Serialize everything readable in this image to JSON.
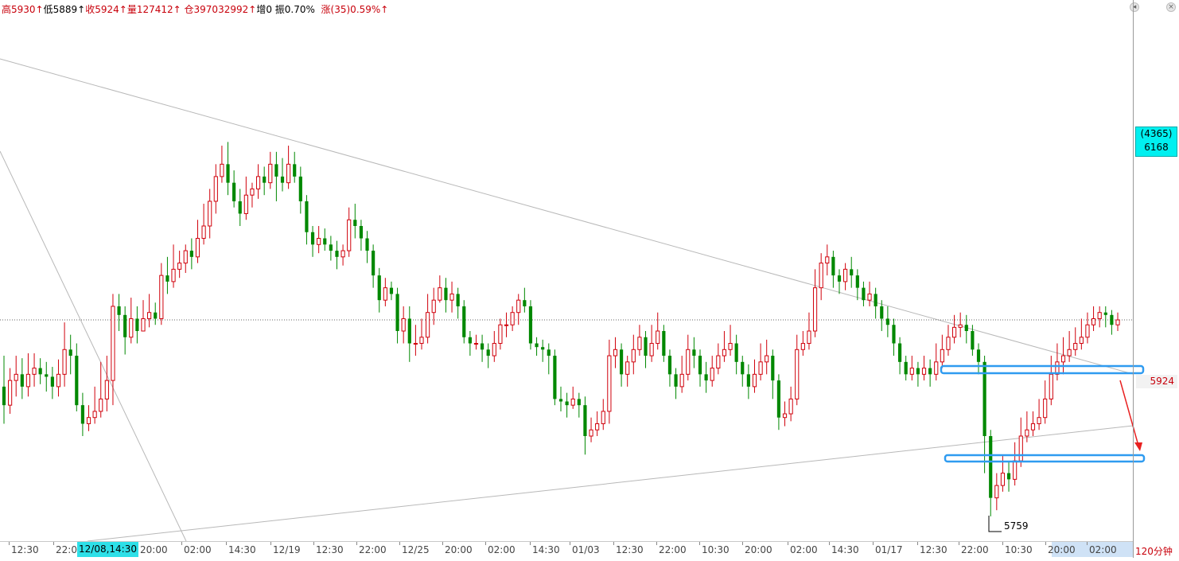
{
  "info_bar": {
    "high": "高5930↑",
    "low": "低5889↑",
    "close": "收5924↑",
    "volume": "量127412↑",
    "open_interest": "仓397032992↑",
    "increase": "增0",
    "amplitude": "振0.70%",
    "change": "涨(35)0.59%↑"
  },
  "right_panel": {
    "tag_line1": "(4365)",
    "tag_line2": "6168",
    "last_price": "5924",
    "period": "120分钟"
  },
  "low_annotation": "5759",
  "x_ticks": [
    "12:30",
    "22:0",
    "20:00",
    "02:00",
    "14:30",
    "12/19",
    "12:30",
    "22:00",
    "12/25",
    "20:00",
    "02:00",
    "14:30",
    "01/03",
    "12:30",
    "22:00",
    "10:30",
    "20:00",
    "02:00",
    "14:30",
    "01/17",
    "12:30",
    "22:00",
    "10:30",
    "20:00",
    "02:00"
  ],
  "x_highlight": "12/08,14:30",
  "colors": {
    "up": "#d0000b",
    "down": "#008800",
    "highlight_box": "#2f9bf0",
    "trendline": "#b8b8b8",
    "arrow": "#e82020"
  },
  "chart_data": {
    "type": "candlestick",
    "period": "120分钟",
    "last_close": 5924,
    "marked_low": 5759,
    "ylim": [
      5745,
      6170
    ],
    "levels": [
      5924
    ],
    "candles_approx": [
      [
        5870,
        5855,
        5895,
        5840
      ],
      [
        5855,
        5875,
        5885,
        5848
      ],
      [
        5875,
        5880,
        5895,
        5862
      ],
      [
        5880,
        5870,
        5893,
        5860
      ],
      [
        5870,
        5880,
        5897,
        5862
      ],
      [
        5880,
        5885,
        5897,
        5870
      ],
      [
        5885,
        5880,
        5893,
        5872
      ],
      [
        5880,
        5878,
        5890,
        5866
      ],
      [
        5878,
        5870,
        5886,
        5860
      ],
      [
        5870,
        5880,
        5892,
        5862
      ],
      [
        5880,
        5900,
        5922,
        5870
      ],
      [
        5900,
        5895,
        5912,
        5880
      ],
      [
        5895,
        5855,
        5905,
        5850
      ],
      [
        5855,
        5840,
        5865,
        5830
      ],
      [
        5840,
        5845,
        5855,
        5834
      ],
      [
        5845,
        5850,
        5870,
        5840
      ],
      [
        5850,
        5860,
        5890,
        5845
      ],
      [
        5860,
        5875,
        5895,
        5850
      ],
      [
        5875,
        5935,
        5945,
        5855
      ],
      [
        5935,
        5928,
        5945,
        5915
      ],
      [
        5928,
        5910,
        5935,
        5896
      ],
      [
        5910,
        5925,
        5942,
        5905
      ],
      [
        5925,
        5915,
        5935,
        5905
      ],
      [
        5915,
        5925,
        5940,
        5915
      ],
      [
        5925,
        5930,
        5945,
        5918
      ],
      [
        5930,
        5925,
        5938,
        5920
      ],
      [
        5925,
        5960,
        5970,
        5920
      ],
      [
        5960,
        5955,
        5975,
        5945
      ],
      [
        5955,
        5965,
        5985,
        5950
      ],
      [
        5965,
        5970,
        5980,
        5958
      ],
      [
        5970,
        5980,
        5985,
        5962
      ],
      [
        5980,
        5975,
        5990,
        5965
      ],
      [
        5975,
        5990,
        6005,
        5970
      ],
      [
        5990,
        6000,
        6018,
        5985
      ],
      [
        6000,
        6020,
        6030,
        5990
      ],
      [
        6020,
        6040,
        6050,
        6010
      ],
      [
        6040,
        6050,
        6065,
        6035
      ],
      [
        6050,
        6035,
        6068,
        6025
      ],
      [
        6035,
        6020,
        6045,
        6015
      ],
      [
        6020,
        6010,
        6030,
        6000
      ],
      [
        6010,
        6025,
        6040,
        6005
      ],
      [
        6025,
        6030,
        6035,
        6015
      ],
      [
        6030,
        6040,
        6050,
        6022
      ],
      [
        6040,
        6035,
        6048,
        6025
      ],
      [
        6035,
        6050,
        6060,
        6030
      ],
      [
        6050,
        6040,
        6060,
        6020
      ],
      [
        6040,
        6035,
        6055,
        6028
      ],
      [
        6035,
        6050,
        6065,
        6030
      ],
      [
        6050,
        6040,
        6060,
        6035
      ],
      [
        6040,
        6020,
        6048,
        6010
      ],
      [
        6020,
        5995,
        6025,
        5985
      ],
      [
        5995,
        5985,
        6000,
        5975
      ],
      [
        5985,
        5990,
        6000,
        5978
      ],
      [
        5990,
        5985,
        5998,
        5980
      ],
      [
        5985,
        5980,
        5992,
        5972
      ],
      [
        5980,
        5975,
        5988,
        5965
      ],
      [
        5975,
        5980,
        5985,
        5968
      ],
      [
        5980,
        6005,
        6015,
        5975
      ],
      [
        6005,
        6000,
        6018,
        5990
      ],
      [
        6000,
        5990,
        6005,
        5980
      ],
      [
        5990,
        5980,
        5996,
        5970
      ],
      [
        5980,
        5960,
        5985,
        5950
      ],
      [
        5960,
        5940,
        5966,
        5930
      ],
      [
        5940,
        5950,
        5958,
        5935
      ],
      [
        5950,
        5945,
        5955,
        5940
      ],
      [
        5945,
        5915,
        5950,
        5905
      ],
      [
        5915,
        5925,
        5935,
        5905
      ],
      [
        5925,
        5905,
        5935,
        5890
      ],
      [
        5905,
        5905,
        5920,
        5895
      ],
      [
        5905,
        5910,
        5925,
        5900
      ],
      [
        5910,
        5930,
        5945,
        5905
      ],
      [
        5930,
        5940,
        5950,
        5920
      ],
      [
        5940,
        5950,
        5960,
        5938
      ],
      [
        5950,
        5940,
        5958,
        5930
      ],
      [
        5940,
        5945,
        5955,
        5930
      ],
      [
        5945,
        5935,
        5950,
        5925
      ],
      [
        5935,
        5910,
        5940,
        5905
      ],
      [
        5910,
        5905,
        5915,
        5895
      ],
      [
        5905,
        5905,
        5912,
        5900
      ],
      [
        5905,
        5900,
        5912,
        5890
      ],
      [
        5900,
        5895,
        5905,
        5885
      ],
      [
        5895,
        5905,
        5915,
        5890
      ],
      [
        5905,
        5920,
        5925,
        5900
      ],
      [
        5920,
        5920,
        5930,
        5910
      ],
      [
        5920,
        5930,
        5935,
        5915
      ],
      [
        5930,
        5940,
        5945,
        5920
      ],
      [
        5940,
        5935,
        5950,
        5930
      ],
      [
        5935,
        5905,
        5940,
        5900
      ],
      [
        5905,
        5902,
        5910,
        5895
      ],
      [
        5902,
        5900,
        5908,
        5890
      ],
      [
        5900,
        5895,
        5905,
        5880
      ],
      [
        5895,
        5860,
        5900,
        5855
      ],
      [
        5860,
        5858,
        5870,
        5850
      ],
      [
        5858,
        5855,
        5865,
        5845
      ],
      [
        5855,
        5860,
        5870,
        5852
      ],
      [
        5860,
        5855,
        5865,
        5845
      ],
      [
        5855,
        5830,
        5862,
        5815
      ],
      [
        5830,
        5835,
        5845,
        5825
      ],
      [
        5835,
        5840,
        5850,
        5830
      ],
      [
        5840,
        5850,
        5860,
        5835
      ],
      [
        5850,
        5895,
        5908,
        5840
      ],
      [
        5895,
        5900,
        5910,
        5885
      ],
      [
        5900,
        5880,
        5905,
        5870
      ],
      [
        5880,
        5890,
        5895,
        5870
      ],
      [
        5890,
        5900,
        5912,
        5880
      ],
      [
        5900,
        5910,
        5920,
        5895
      ],
      [
        5910,
        5895,
        5915,
        5885
      ],
      [
        5895,
        5905,
        5920,
        5890
      ],
      [
        5905,
        5915,
        5930,
        5900
      ],
      [
        5915,
        5895,
        5920,
        5890
      ],
      [
        5895,
        5880,
        5900,
        5870
      ],
      [
        5880,
        5870,
        5885,
        5860
      ],
      [
        5870,
        5880,
        5895,
        5865
      ],
      [
        5880,
        5900,
        5912,
        5875
      ],
      [
        5900,
        5895,
        5910,
        5885
      ],
      [
        5895,
        5880,
        5900,
        5870
      ],
      [
        5880,
        5875,
        5890,
        5865
      ],
      [
        5875,
        5885,
        5895,
        5870
      ],
      [
        5885,
        5895,
        5905,
        5880
      ],
      [
        5895,
        5900,
        5915,
        5890
      ],
      [
        5900,
        5905,
        5920,
        5895
      ],
      [
        5905,
        5890,
        5912,
        5880
      ],
      [
        5890,
        5880,
        5895,
        5870
      ],
      [
        5880,
        5870,
        5888,
        5860
      ],
      [
        5870,
        5880,
        5892,
        5865
      ],
      [
        5880,
        5890,
        5905,
        5875
      ],
      [
        5890,
        5895,
        5908,
        5880
      ],
      [
        5895,
        5875,
        5900,
        5860
      ],
      [
        5875,
        5845,
        5880,
        5835
      ],
      [
        5845,
        5848,
        5858,
        5838
      ],
      [
        5848,
        5860,
        5870,
        5842
      ],
      [
        5860,
        5900,
        5912,
        5855
      ],
      [
        5900,
        5905,
        5915,
        5895
      ],
      [
        5905,
        5915,
        5930,
        5900
      ],
      [
        5915,
        5950,
        5965,
        5910
      ],
      [
        5950,
        5970,
        5978,
        5940
      ],
      [
        5970,
        5975,
        5985,
        5960
      ],
      [
        5975,
        5960,
        5980,
        5950
      ],
      [
        5960,
        5955,
        5965,
        5945
      ],
      [
        5955,
        5965,
        5970,
        5948
      ],
      [
        5965,
        5960,
        5975,
        5950
      ],
      [
        5960,
        5950,
        5965,
        5940
      ],
      [
        5950,
        5940,
        5955,
        5935
      ],
      [
        5940,
        5945,
        5955,
        5935
      ],
      [
        5945,
        5935,
        5950,
        5925
      ],
      [
        5935,
        5925,
        5940,
        5915
      ],
      [
        5925,
        5920,
        5935,
        5910
      ],
      [
        5920,
        5905,
        5925,
        5895
      ],
      [
        5905,
        5890,
        5910,
        5880
      ],
      [
        5890,
        5880,
        5895,
        5875
      ],
      [
        5880,
        5885,
        5895,
        5875
      ],
      [
        5885,
        5880,
        5890,
        5870
      ],
      [
        5880,
        5885,
        5895,
        5875
      ],
      [
        5885,
        5880,
        5892,
        5870
      ],
      [
        5880,
        5890,
        5905,
        5875
      ],
      [
        5890,
        5900,
        5912,
        5885
      ],
      [
        5900,
        5910,
        5920,
        5895
      ],
      [
        5910,
        5918,
        5928,
        5905
      ],
      [
        5918,
        5920,
        5930,
        5910
      ],
      [
        5920,
        5915,
        5928,
        5905
      ],
      [
        5915,
        5900,
        5920,
        5895
      ],
      [
        5900,
        5890,
        5905,
        5880
      ],
      [
        5890,
        5830,
        5895,
        5800
      ],
      [
        5830,
        5780,
        5835,
        5765
      ],
      [
        5780,
        5790,
        5800,
        5770
      ],
      [
        5790,
        5800,
        5815,
        5785
      ],
      [
        5800,
        5795,
        5810,
        5785
      ],
      [
        5795,
        5810,
        5825,
        5790
      ],
      [
        5810,
        5830,
        5845,
        5805
      ],
      [
        5830,
        5835,
        5850,
        5825
      ],
      [
        5835,
        5840,
        5850,
        5830
      ],
      [
        5840,
        5845,
        5860,
        5835
      ],
      [
        5845,
        5860,
        5875,
        5840
      ],
      [
        5860,
        5880,
        5895,
        5855
      ],
      [
        5880,
        5890,
        5905,
        5875
      ],
      [
        5890,
        5895,
        5910,
        5880
      ],
      [
        5895,
        5900,
        5915,
        5890
      ],
      [
        5900,
        5905,
        5918,
        5895
      ],
      [
        5905,
        5910,
        5925,
        5900
      ],
      [
        5910,
        5920,
        5930,
        5905
      ],
      [
        5920,
        5925,
        5935,
        5915
      ],
      [
        5925,
        5930,
        5935,
        5918
      ],
      [
        5930,
        5928,
        5935,
        5918
      ],
      [
        5928,
        5920,
        5932,
        5912
      ],
      [
        5920,
        5924,
        5930,
        5915
      ]
    ]
  }
}
